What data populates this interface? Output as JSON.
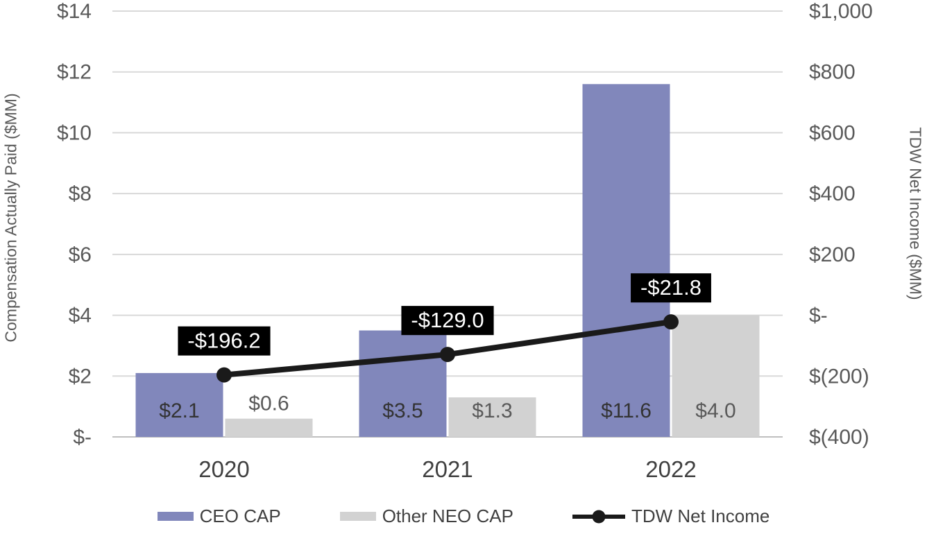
{
  "chart_data": {
    "type": "combo_bar_line",
    "title": "",
    "categories": [
      "2020",
      "2021",
      "2022"
    ],
    "series": [
      {
        "name": "CEO CAP",
        "type": "bar",
        "axis": "left",
        "values": [
          2.1,
          3.5,
          11.6
        ],
        "value_labels": [
          "$2.1",
          "$3.5",
          "$11.6"
        ],
        "color": "#8187BB",
        "label_color": "#333333"
      },
      {
        "name": "Other NEO CAP",
        "type": "bar",
        "axis": "left",
        "values": [
          0.6,
          1.3,
          4.0
        ],
        "value_labels": [
          "$0.6",
          "$1.3",
          "$4.0"
        ],
        "color": "#D2D2D2",
        "label_color": "#595959"
      },
      {
        "name": "TDW Net Income",
        "type": "line",
        "axis": "right",
        "values": [
          -196.2,
          -129.0,
          -21.8
        ],
        "value_labels": [
          "-$196.2",
          "-$129.0",
          "-$21.8"
        ],
        "color": "#1A1A1A",
        "label_color": "#FFFFFF"
      }
    ],
    "left_axis": {
      "title": "Compensation Actually Paid ($MM)",
      "min": 0,
      "max": 14,
      "step": 2,
      "tick_labels": [
        "$-",
        "$2",
        "$4",
        "$6",
        "$8",
        "$10",
        "$12",
        "$14"
      ]
    },
    "right_axis": {
      "title": "TDW Net Income ($MM)",
      "min": -400,
      "max": 1000,
      "step": 200,
      "tick_labels": [
        "$(400)",
        "$(200)",
        "$-",
        "$200",
        "$400",
        "$600",
        "$800",
        "$1,000"
      ]
    },
    "legend": {
      "position": "bottom",
      "items": [
        {
          "label": "CEO CAP",
          "swatch": "bar",
          "color": "#8187BB"
        },
        {
          "label": "Other NEO CAP",
          "swatch": "bar",
          "color": "#D2D2D2"
        },
        {
          "label": "TDW Net Income",
          "swatch": "line-marker",
          "color": "#1A1A1A"
        }
      ]
    },
    "grid": true,
    "colors": {
      "background": "#FFFFFF",
      "grid": "#D9D9D9",
      "baseline": "#BFBFBF",
      "axis_text": "#595959",
      "category_text": "#404040",
      "legend_text": "#404040",
      "label_box_bg": "#000000",
      "label_box_text": "#FFFFFF"
    }
  }
}
